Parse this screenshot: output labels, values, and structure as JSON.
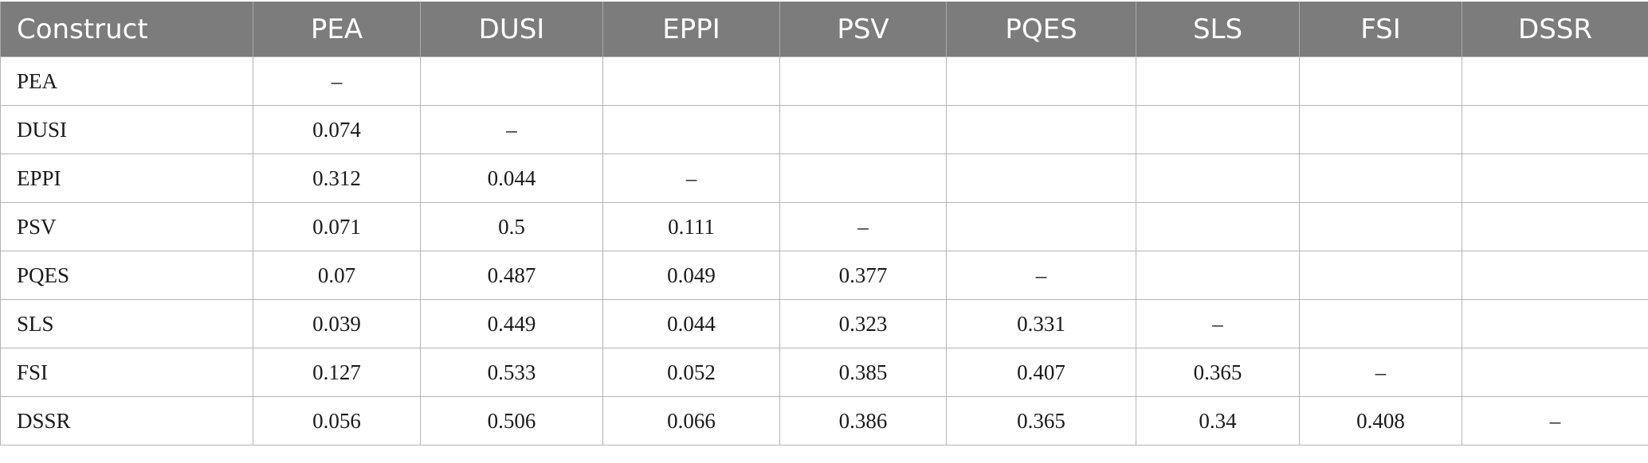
{
  "table": {
    "headers": [
      "Construct",
      "PEA",
      "DUSI",
      "EPPI",
      "PSV",
      "PQES",
      "SLS",
      "FSI",
      "DSSR"
    ],
    "rows": [
      [
        "PEA",
        "–",
        "",
        "",
        "",
        "",
        "",
        "",
        ""
      ],
      [
        "DUSI",
        "0.074",
        "–",
        "",
        "",
        "",
        "",
        "",
        ""
      ],
      [
        "EPPI",
        "0.312",
        "0.044",
        "–",
        "",
        "",
        "",
        "",
        ""
      ],
      [
        "PSV",
        "0.071",
        "0.5",
        "0.111",
        "–",
        "",
        "",
        "",
        ""
      ],
      [
        "PQES",
        "0.07",
        "0.487",
        "0.049",
        "0.377",
        "–",
        "",
        "",
        ""
      ],
      [
        "SLS",
        "0.039",
        "0.449",
        "0.044",
        "0.323",
        "0.331",
        "–",
        "",
        ""
      ],
      [
        "FSI",
        "0.127",
        "0.533",
        "0.052",
        "0.385",
        "0.407",
        "0.365",
        "–",
        ""
      ],
      [
        "DSSR",
        "0.056",
        "0.506",
        "0.066",
        "0.386",
        "0.365",
        "0.34",
        "0.408",
        "–"
      ]
    ]
  }
}
